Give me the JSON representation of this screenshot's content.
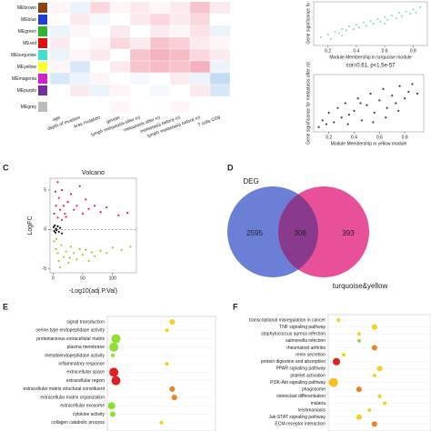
{
  "chart_data": [
    {
      "type": "heatmap",
      "rows": [
        "MEbrown",
        "MEblue",
        "MEgreen",
        "MEred",
        "MEturquoise",
        "MEyellow",
        "MEmagenta",
        "MEpurple",
        "MEgrey"
      ],
      "row_colors": [
        "#8b4513",
        "#1f3fd6",
        "#2fb52f",
        "#e01010",
        "#40e0d0",
        "#ffff33",
        "#d020d0",
        "#7a2aa0",
        "#bbbbbb"
      ],
      "columns": [
        "age",
        "depth of invasion",
        "kras mutation",
        "gender",
        "lymph metastasis after rct",
        "metastasis after rct",
        "metastasis before rct",
        "lymph metastasis before rct",
        "T cells CD8"
      ],
      "values": [
        [
          0.05,
          -0.1,
          0.2,
          0.05,
          0.1,
          0.05,
          0.1,
          0.3,
          0.1
        ],
        [
          0.0,
          0.1,
          -0.05,
          0.0,
          0.1,
          0.2,
          0.1,
          0.2,
          0.0
        ],
        [
          -0.1,
          0.05,
          0.0,
          0.1,
          0.0,
          0.1,
          0.05,
          0.15,
          -0.1
        ],
        [
          0.1,
          0.0,
          0.05,
          0.2,
          0.1,
          0.3,
          0.25,
          0.1,
          0.05
        ],
        [
          -0.1,
          0.05,
          0.1,
          0.0,
          0.3,
          0.4,
          0.35,
          0.2,
          0.1
        ],
        [
          0.05,
          -0.2,
          0.0,
          0.1,
          0.3,
          0.35,
          0.3,
          0.4,
          -0.1
        ],
        [
          -0.2,
          -0.1,
          0.05,
          0.0,
          -0.05,
          0.0,
          0.1,
          -0.1,
          -0.3
        ],
        [
          0.0,
          0.1,
          -0.1,
          0.05,
          0.0,
          -0.05,
          0.0,
          0.1,
          -0.2
        ],
        [
          0.0,
          0.0,
          0.0,
          0.05,
          0.0,
          0.0,
          0.05,
          0.0,
          0.0
        ]
      ]
    },
    {
      "type": "scatter",
      "xlabel": "Module Membership in turquoise module",
      "ylabel": "Gene significance fo",
      "annotation": "cor=0.61, p<1.5e-57",
      "xlim": [
        0.1,
        0.9
      ],
      "ylim": [
        0,
        0.8
      ],
      "xticks": [
        0.2,
        0.4,
        0.6,
        0.8
      ],
      "series": [
        {
          "color": "#8fe3c8",
          "x": [
            0.15,
            0.2,
            0.22,
            0.25,
            0.28,
            0.3,
            0.33,
            0.35,
            0.38,
            0.4,
            0.42,
            0.45,
            0.47,
            0.5,
            0.52,
            0.55,
            0.57,
            0.6,
            0.62,
            0.65,
            0.68,
            0.7,
            0.72,
            0.75,
            0.78,
            0.8,
            0.82,
            0.85,
            0.3,
            0.6
          ],
          "values": [
            0.15,
            0.2,
            0.12,
            0.25,
            0.22,
            0.3,
            0.28,
            0.35,
            0.3,
            0.38,
            0.33,
            0.42,
            0.36,
            0.45,
            0.4,
            0.48,
            0.44,
            0.52,
            0.47,
            0.55,
            0.5,
            0.6,
            0.54,
            0.62,
            0.58,
            0.66,
            0.6,
            0.7,
            0.18,
            0.4
          ]
        }
      ]
    },
    {
      "type": "scatter",
      "xlabel": "Module Membership in yellow module",
      "ylabel": "Gene significance for metastasis after rct",
      "xlim": [
        0.08,
        0.95
      ],
      "ylim": [
        0,
        0.6
      ],
      "xticks": [
        0.2,
        0.4,
        0.6,
        0.8
      ],
      "series": [
        {
          "color": "#444444",
          "x": [
            0.12,
            0.15,
            0.18,
            0.2,
            0.24,
            0.27,
            0.3,
            0.33,
            0.36,
            0.4,
            0.43,
            0.46,
            0.5,
            0.53,
            0.56,
            0.6,
            0.63,
            0.66,
            0.7,
            0.73,
            0.76,
            0.8,
            0.83,
            0.86,
            0.9,
            0.35,
            0.55,
            0.65,
            0.45,
            0.75
          ],
          "values": [
            0.05,
            0.12,
            0.08,
            0.2,
            0.1,
            0.25,
            0.15,
            0.3,
            0.18,
            0.22,
            0.35,
            0.12,
            0.28,
            0.4,
            0.2,
            0.33,
            0.45,
            0.25,
            0.38,
            0.3,
            0.48,
            0.35,
            0.42,
            0.5,
            0.4,
            0.08,
            0.1,
            0.15,
            0.3,
            0.22
          ]
        }
      ]
    },
    {
      "type": "scatter",
      "panel": "C",
      "title": "Volcano",
      "xlabel": "-Log10(adj.P.Val)",
      "ylabel": "LogFC",
      "xlim": [
        -5,
        140
      ],
      "ylim": [
        -5.5,
        6.5
      ],
      "xticks": [
        0,
        50,
        100
      ],
      "yticks": [
        -5,
        0,
        5
      ],
      "hline": 0,
      "series": [
        {
          "color": "#e8204a",
          "x": [
            2,
            5,
            8,
            10,
            12,
            15,
            18,
            20,
            25,
            30,
            35,
            40,
            45,
            50,
            55,
            60,
            70,
            80,
            90,
            110,
            125,
            8,
            15,
            22,
            4
          ],
          "values": [
            2,
            3,
            1.5,
            4,
            2.5,
            5,
            3,
            2,
            3.5,
            4.5,
            2.5,
            3,
            5.5,
            2,
            3.8,
            2.6,
            3,
            2.2,
            2.8,
            1.8,
            2.1,
            6,
            1.2,
            1.6,
            4.8
          ]
        },
        {
          "color": "#8fd630",
          "x": [
            2,
            5,
            8,
            10,
            14,
            18,
            22,
            26,
            30,
            35,
            40,
            45,
            50,
            55,
            60,
            65,
            70,
            80,
            90,
            100,
            115,
            130,
            12,
            6,
            28
          ],
          "values": [
            -1.5,
            -2.5,
            -3,
            -4,
            -2,
            -3.5,
            -2.8,
            -4.2,
            -2.2,
            -3,
            -3.8,
            -2.5,
            -3.2,
            -2.6,
            -4,
            -2.9,
            -3.4,
            -2.7,
            -3,
            -2.3,
            -2.6,
            -2.2,
            -4.8,
            -1.2,
            -3.6
          ]
        },
        {
          "color": "#111111",
          "x": [
            1,
            2,
            3,
            4,
            5,
            6,
            8,
            10,
            12,
            15
          ],
          "values": [
            0.3,
            -0.2,
            0.5,
            -0.4,
            0.1,
            -0.1,
            0.4,
            -0.3,
            0.2,
            -0.5
          ]
        }
      ]
    },
    {
      "type": "venn",
      "panel": "D",
      "sets": [
        {
          "name": "DEG",
          "color": "#6b7fd7"
        },
        {
          "name": "turquoise&yellow",
          "color": "#e8509a"
        }
      ],
      "values": [
        2595,
        308,
        393
      ]
    },
    {
      "type": "dot",
      "panel": "E",
      "xlim": [
        0,
        1
      ],
      "categories": [
        "signal transduction",
        "serine-type endopeptidase activity",
        "proteinaceous extracellular matrix",
        "plasma membrane",
        "metalloendopeptidase activity",
        "inflammatory response",
        "extracellular space",
        "extracellular region",
        "extracellular matrix structural constituent",
        "extracellular matrix organization",
        "extracellular exosome",
        "cytokine activity",
        "collagen catabolic process"
      ],
      "values": [
        0.6,
        0.55,
        0.08,
        0.06,
        0.05,
        0.55,
        0.06,
        0.08,
        0.6,
        0.62,
        0.04,
        0.05,
        0.5
      ],
      "sizes": [
        3,
        2,
        5,
        5,
        2,
        2,
        5,
        5,
        3,
        3,
        4,
        3,
        2
      ],
      "colors": [
        "#f5d020",
        "#f5d020",
        "#90e030",
        "#90e030",
        "#90e030",
        "#f5d020",
        "#e02020",
        "#e02020",
        "#f08020",
        "#f08020",
        "#90e030",
        "#90e030",
        "#f5d020"
      ]
    },
    {
      "type": "dot",
      "panel": "F",
      "xlim": [
        0,
        1
      ],
      "categories": [
        "transcriptional misregulation in cancer",
        "TNF signaling pathway",
        "staphylococcus aureus infection",
        "salmonella infection",
        "rheumatoid arthritis",
        "renin secretion",
        "protein digestion and absorption",
        "PPAR signaling pathway",
        "platelet activation",
        "PI3K-Akt signaling pathway",
        "phagosome",
        "osteoclast differentiation",
        "malaria",
        "leishmaniasis",
        "Jak-STAT signaling pathway",
        "ECM-receptor interaction"
      ],
      "values": [
        0.1,
        0.45,
        0.3,
        0.3,
        0.45,
        0.15,
        0.08,
        0.5,
        0.45,
        0.05,
        0.3,
        0.5,
        0.55,
        0.4,
        0.3,
        0.45
      ],
      "sizes": [
        2,
        3,
        2,
        2,
        3,
        2,
        4,
        3,
        2,
        5,
        3,
        2,
        2,
        2,
        3,
        3
      ],
      "colors": [
        "#f5d020",
        "#f5d020",
        "#f5d020",
        "#90e030",
        "#f08020",
        "#f5d020",
        "#e02020",
        "#f5d020",
        "#f5d020",
        "#f5c020",
        "#f08020",
        "#f5d020",
        "#f5d020",
        "#f5d020",
        "#f5d020",
        "#f08020"
      ]
    }
  ]
}
